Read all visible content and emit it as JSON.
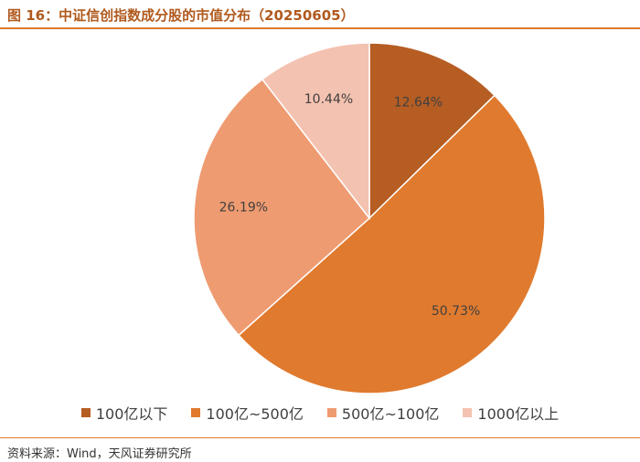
{
  "title": "图 16：中证信创指数成分股的市值分布（20250605）",
  "source": "资料来源：Wind，天风证券研究所",
  "chart_data": {
    "type": "pie",
    "categories": [
      "100亿以下",
      "100亿~500亿",
      "500亿~100亿",
      "1000亿以上"
    ],
    "values": [
      12.64,
      50.73,
      26.19,
      10.44
    ],
    "labels": [
      "12.64%",
      "50.73%",
      "26.19%",
      "10.44%"
    ],
    "colors": [
      "#b55d23",
      "#e07a2e",
      "#ef9b71",
      "#f4c2b0"
    ],
    "start_angle": "12 o'clock",
    "direction": "clockwise",
    "legend_position": "bottom"
  }
}
